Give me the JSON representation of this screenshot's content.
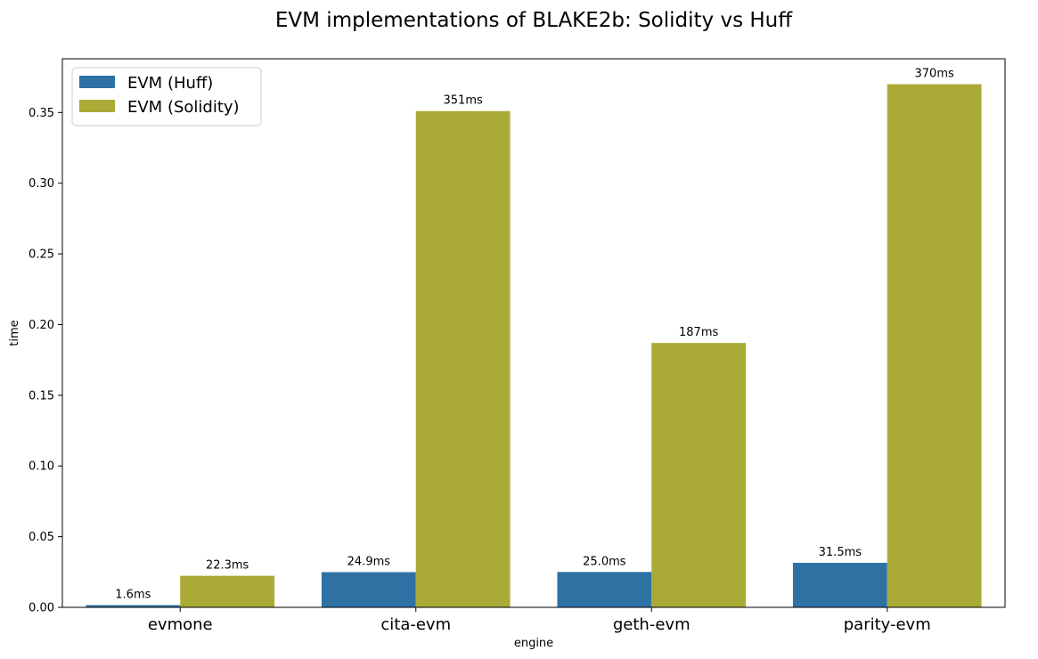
{
  "chart_data": {
    "type": "bar",
    "title": "EVM implementations of BLAKE2b: Solidity vs Huff",
    "xlabel": "engine",
    "ylabel": "time",
    "categories": [
      "evmone",
      "cita-evm",
      "geth-evm",
      "parity-evm"
    ],
    "series": [
      {
        "name": "EVM (Huff)",
        "color": "#2e72a4",
        "values": [
          0.0016,
          0.0249,
          0.025,
          0.0315
        ],
        "labels": [
          "1.6ms",
          "24.9ms",
          "25.0ms",
          "31.5ms"
        ]
      },
      {
        "name": "EVM (Solidity)",
        "color": "#aaaa36",
        "values": [
          0.0223,
          0.351,
          0.187,
          0.37
        ],
        "labels": [
          "22.3ms",
          "351ms",
          "187ms",
          "370ms"
        ]
      }
    ],
    "ylim": [
      0,
      0.388
    ],
    "yticks": [
      "0.00",
      "0.05",
      "0.10",
      "0.15",
      "0.20",
      "0.25",
      "0.30",
      "0.35"
    ],
    "legend": "top-left",
    "grid": false
  }
}
